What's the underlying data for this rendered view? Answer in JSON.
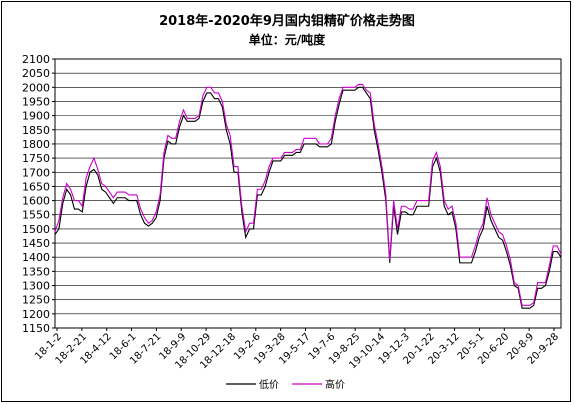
{
  "chart_data": {
    "type": "line",
    "title": "2018年-2020年9月国内钼精矿价格走势图",
    "subtitle": "单位：元/吨度",
    "xlabel": "",
    "ylabel": "",
    "ylim": [
      1150,
      2100
    ],
    "y_ticks": [
      1150,
      1200,
      1250,
      1300,
      1350,
      1400,
      1450,
      1500,
      1550,
      1600,
      1650,
      1700,
      1750,
      1800,
      1850,
      1900,
      1950,
      2000,
      2050,
      2100
    ],
    "x_tick_labels": [
      "18-1-2",
      "18-2-21",
      "18-4-12",
      "18-6-1",
      "18-7-21",
      "18-9-9",
      "18-10-29",
      "18-12-18",
      "19-2-6",
      "19-3-28",
      "19-5-17",
      "19-7-6",
      "19-8-25",
      "19-10-14",
      "19-12-3",
      "20-1-22",
      "20-3-12",
      "20-5-1",
      "20-6-20",
      "20-8-9",
      "20-9-28"
    ],
    "grid": "horizontal",
    "legend_position": "bottom",
    "colors": {
      "low": "#000000",
      "high": "#cc00cc"
    },
    "series": [
      {
        "name": "低价",
        "key": "low",
        "values": [
          1480,
          1500,
          1590,
          1640,
          1620,
          1570,
          1570,
          1560,
          1650,
          1700,
          1710,
          1690,
          1640,
          1630,
          1610,
          1590,
          1610,
          1610,
          1610,
          1600,
          1600,
          1600,
          1550,
          1520,
          1510,
          1520,
          1540,
          1600,
          1750,
          1810,
          1800,
          1800,
          1860,
          1900,
          1880,
          1880,
          1880,
          1890,
          1950,
          1980,
          1980,
          1960,
          1960,
          1930,
          1850,
          1800,
          1700,
          1700,
          1560,
          1470,
          1500,
          1500,
          1620,
          1620,
          1650,
          1700,
          1740,
          1740,
          1740,
          1760,
          1760,
          1760,
          1770,
          1770,
          1800,
          1800,
          1800,
          1800,
          1790,
          1790,
          1790,
          1800,
          1880,
          1940,
          1990,
          1990,
          1990,
          1990,
          2000,
          2000,
          1980,
          1960,
          1850,
          1780,
          1700,
          1600,
          1380,
          1580,
          1480,
          1560,
          1560,
          1550,
          1550,
          1580,
          1580,
          1580,
          1580,
          1720,
          1750,
          1700,
          1580,
          1550,
          1560,
          1500,
          1380,
          1380,
          1380,
          1380,
          1420,
          1470,
          1500,
          1580,
          1530,
          1500,
          1470,
          1460,
          1420,
          1370,
          1300,
          1290,
          1220,
          1220,
          1220,
          1230,
          1290,
          1290,
          1300,
          1350,
          1420,
          1420,
          1400
        ]
      },
      {
        "name": "高价",
        "key": "high",
        "values": [
          1490,
          1530,
          1610,
          1660,
          1640,
          1600,
          1600,
          1580,
          1680,
          1720,
          1750,
          1710,
          1660,
          1650,
          1630,
          1610,
          1630,
          1630,
          1630,
          1620,
          1620,
          1620,
          1570,
          1540,
          1520,
          1530,
          1560,
          1620,
          1770,
          1830,
          1820,
          1820,
          1880,
          1920,
          1890,
          1890,
          1890,
          1900,
          1970,
          2000,
          2000,
          1980,
          1980,
          1950,
          1870,
          1830,
          1720,
          1720,
          1580,
          1490,
          1520,
          1520,
          1640,
          1640,
          1670,
          1720,
          1750,
          1750,
          1750,
          1770,
          1770,
          1770,
          1780,
          1780,
          1820,
          1820,
          1820,
          1820,
          1800,
          1800,
          1800,
          1820,
          1900,
          1960,
          2000,
          2000,
          2000,
          2000,
          2010,
          2010,
          1990,
          1980,
          1870,
          1800,
          1720,
          1620,
          1390,
          1600,
          1500,
          1580,
          1580,
          1570,
          1570,
          1600,
          1600,
          1600,
          1600,
          1740,
          1770,
          1720,
          1600,
          1570,
          1580,
          1520,
          1400,
          1400,
          1400,
          1400,
          1440,
          1490,
          1520,
          1610,
          1550,
          1520,
          1490,
          1480,
          1440,
          1390,
          1310,
          1300,
          1230,
          1230,
          1230,
          1240,
          1310,
          1310,
          1310,
          1370,
          1440,
          1440,
          1410
        ]
      }
    ]
  }
}
